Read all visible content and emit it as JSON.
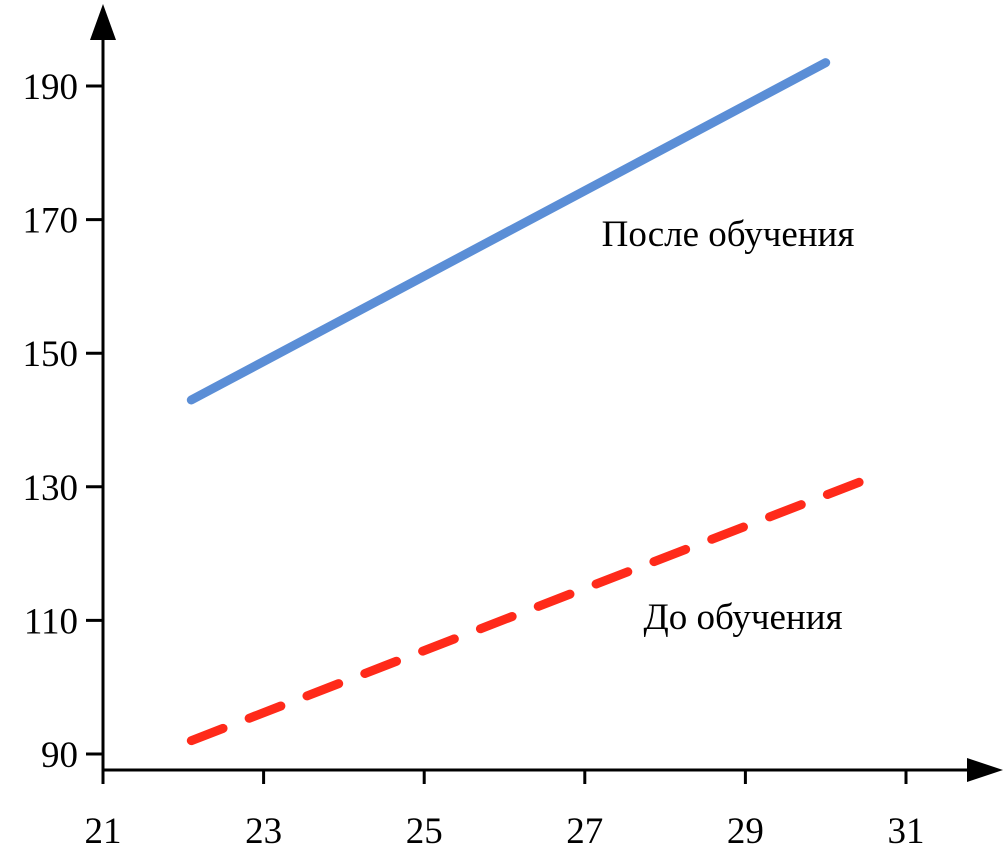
{
  "chart_data": {
    "type": "line",
    "title": "",
    "xlabel": "",
    "ylabel": "",
    "xlim": [
      21,
      31
    ],
    "ylim": [
      90,
      190
    ],
    "x_ticks": [
      21,
      23,
      25,
      27,
      29,
      31
    ],
    "y_ticks": [
      90,
      110,
      130,
      150,
      170,
      190
    ],
    "grid": false,
    "series": [
      {
        "name": "После обучения",
        "color": "#5b8ed6",
        "dash": "solid",
        "points": [
          [
            22.1,
            143
          ],
          [
            30.0,
            193.5
          ]
        ]
      },
      {
        "name": "До обучения",
        "color": "#ff2a1a",
        "dash": "dashed",
        "points": [
          [
            22.1,
            92
          ],
          [
            30.7,
            132
          ]
        ]
      }
    ]
  }
}
